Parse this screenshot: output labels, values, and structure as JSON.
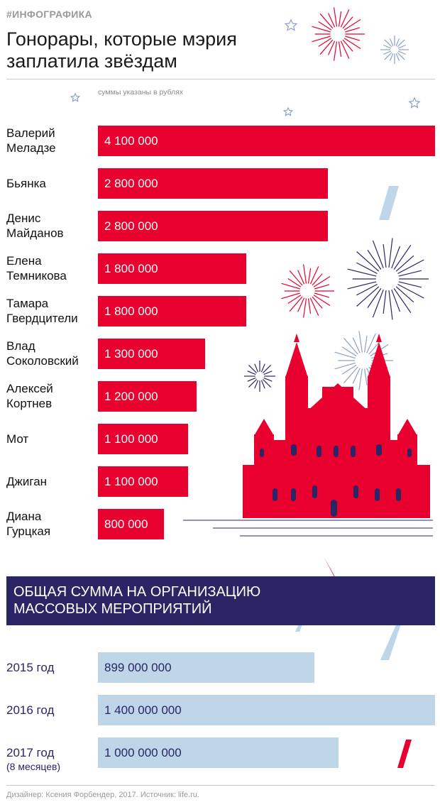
{
  "header": {
    "tag": "#ИНФОГРАФИКА",
    "title_line1": "Гонорары, которые мэрия",
    "title_line2": "заплатила звёздам",
    "units_note": "суммы указаны в рублях"
  },
  "chart_data": [
    {
      "type": "bar",
      "orientation": "horizontal",
      "categories": [
        [
          "Валерий",
          "Меладзе"
        ],
        [
          "Бьянка"
        ],
        [
          "Денис",
          "Майданов"
        ],
        [
          "Елена",
          "Темникова"
        ],
        [
          "Тамара",
          "Гвердцители"
        ],
        [
          "Влад",
          "Соколовский"
        ],
        [
          "Алексей",
          "Кортнев"
        ],
        [
          "Мот"
        ],
        [
          "Джиган"
        ],
        [
          "Диана",
          "Гурцкая"
        ]
      ],
      "values": [
        4100000,
        2800000,
        2800000,
        1800000,
        1800000,
        1300000,
        1200000,
        1100000,
        1100000,
        800000
      ],
      "value_labels": [
        "4 100 000",
        "2 800 000",
        "2 800 000",
        "1 800 000",
        "1 800 000",
        "1 300 000",
        "1 200 000",
        "1 100 000",
        "1 100 000",
        "800 000"
      ],
      "xlim": [
        0,
        4100000
      ],
      "color": "#e8002e"
    },
    {
      "type": "bar",
      "orientation": "horizontal",
      "title_line1": "ОБЩАЯ СУММА НА ОРГАНИЗАЦИЮ",
      "title_line2": "МАССОВЫХ МЕРОПРИЯТИЙ",
      "categories": [
        "2015 год",
        "2016 год",
        "2017 год"
      ],
      "category_notes": [
        "",
        "",
        "(8 месяцев)"
      ],
      "values": [
        899000000,
        1400000000,
        1000000000
      ],
      "value_labels": [
        "899 000 000",
        "1 400 000 000",
        "1 000 000 000"
      ],
      "xlim": [
        0,
        1400000000
      ],
      "color": "#bfd6e8"
    }
  ],
  "footer": {
    "credit": "Дизайнер: Ксения Форбендер, 2017. Источник: life.ru."
  },
  "colors": {
    "accent_red": "#e8002e",
    "navy": "#2a2565",
    "light_blue": "#bfd6e8"
  },
  "decor_icons": [
    "firework-icon",
    "star-icon",
    "kremlin-building-icon",
    "confetti-icon"
  ]
}
